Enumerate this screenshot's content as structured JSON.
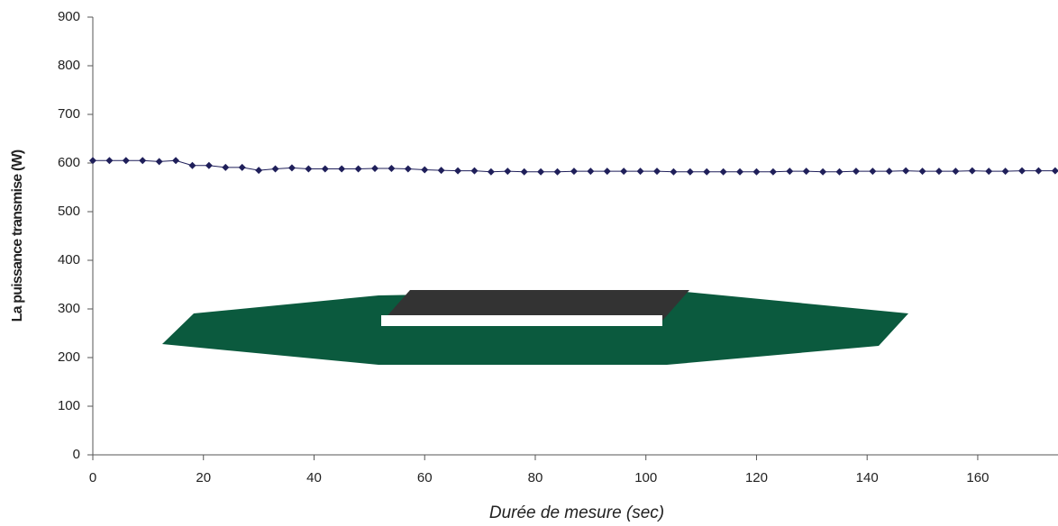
{
  "chart_data": {
    "type": "line",
    "x_label": "Durée de mesure (sec)",
    "y_label": "La puissance transmise (W)",
    "x": [
      0,
      3,
      6,
      9,
      12,
      15,
      18,
      21,
      24,
      27,
      30,
      33,
      36,
      39,
      42,
      45,
      48,
      51,
      54,
      57,
      60,
      63,
      66,
      69,
      72,
      75,
      78,
      81,
      84,
      87,
      90,
      93,
      96,
      99,
      102,
      105,
      108,
      111,
      114,
      117,
      120,
      123,
      126,
      129,
      132,
      135,
      138,
      141,
      144,
      147,
      150,
      153,
      156,
      159,
      162,
      165,
      168,
      171,
      174
    ],
    "series": [
      {
        "color": "#1f1f5a",
        "values": [
          605,
          605,
          605,
          605,
          603,
          605,
          595,
          595,
          591,
          591,
          585,
          588,
          590,
          588,
          588,
          588,
          588,
          589,
          589,
          588,
          586,
          585,
          584,
          584,
          582,
          583,
          582,
          582,
          582,
          583,
          583,
          583,
          583,
          583,
          583,
          582,
          582,
          582,
          582,
          582,
          582,
          582,
          583,
          583,
          582,
          582,
          583,
          583,
          583,
          584,
          583,
          583,
          583,
          584,
          583,
          583,
          584,
          584,
          584
        ]
      }
    ],
    "xlim": [
      0,
      175
    ],
    "xticks": [
      0,
      20,
      40,
      60,
      80,
      100,
      120,
      140,
      160
    ],
    "ylim": [
      0,
      900
    ],
    "yticks": [
      0,
      100,
      200,
      300,
      400,
      500,
      600,
      700,
      800,
      900
    ],
    "grid": false
  }
}
